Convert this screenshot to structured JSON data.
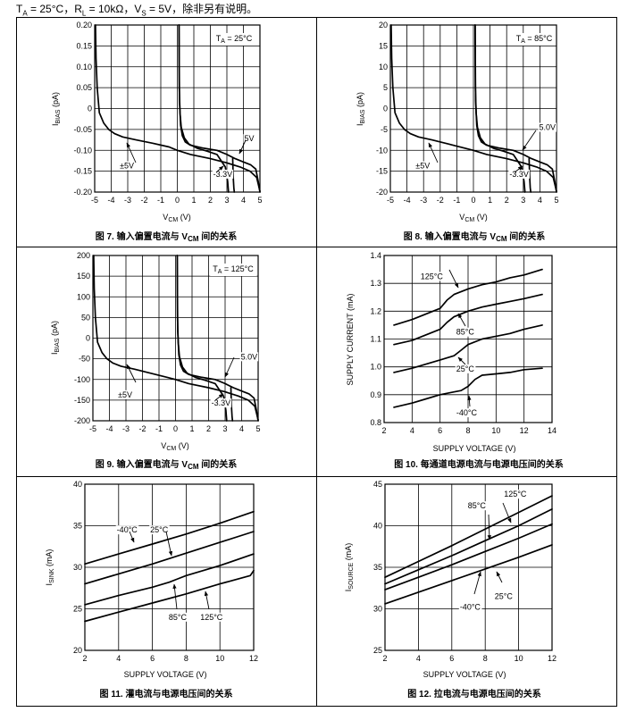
{
  "header": {
    "ta": "25°C",
    "rl": "10kΩ",
    "vs": "5V",
    "note": "除非另有说明。"
  },
  "chart_data": [
    {
      "id": "fig7",
      "type": "line",
      "caption_prefix": "图 7.",
      "caption_text": "输入偏置电流与 V",
      "caption_sub": "CM",
      "caption_suffix": " 间的关系",
      "xlabel": "V",
      "xlabel_sub": "CM",
      "xlabel_unit": " (V)",
      "ylabel": "I",
      "ylabel_sub": "BIAS",
      "ylabel_unit": " (pA)",
      "xlim": [
        -5,
        5
      ],
      "ylim": [
        -0.2,
        0.2
      ],
      "xticks": [
        -5,
        -4,
        -3,
        -2,
        -1,
        0,
        1,
        2,
        3,
        4,
        5
      ],
      "xticklabels": [
        "-5",
        "-4",
        "-3",
        "-2",
        "-1",
        "0",
        "1",
        "2",
        "3",
        "4",
        "5"
      ],
      "yticks": [
        0.2,
        0.15,
        0.1,
        0.05,
        0,
        -0.05,
        -0.1,
        -0.15,
        -0.2
      ],
      "yticklabels": [
        "0.20",
        "0.15",
        "0.10",
        "0.05",
        "0",
        "-0.05",
        "-0.10",
        "-0.15",
        "-0.20"
      ],
      "legend_title": "T",
      "legend_title_sub": "A",
      "legend_title_value": " = 25°C",
      "series": [
        {
          "name": "±5V",
          "x": [
            -4.95,
            -4.92,
            -4.85,
            -4.72,
            -4.45,
            -4.15,
            -3.8,
            -3.3,
            -2.5,
            -1.5,
            -0.5,
            0,
            0.8,
            2,
            3,
            3.8,
            4.4,
            4.8,
            5
          ],
          "y": [
            0.2,
            0.12,
            0.05,
            -0.01,
            -0.035,
            -0.05,
            -0.06,
            -0.068,
            -0.075,
            -0.083,
            -0.092,
            -0.1,
            -0.11,
            -0.12,
            -0.13,
            -0.14,
            -0.15,
            -0.165,
            -0.198
          ]
        },
        {
          "name": "-3.3V",
          "x": [
            0.1,
            0.12,
            0.16,
            0.24,
            0.42,
            0.7,
            1.2,
            1.8,
            2.4,
            2.9,
            3.05,
            3.1
          ],
          "y": [
            0.2,
            0.05,
            -0.01,
            -0.045,
            -0.07,
            -0.085,
            -0.095,
            -0.102,
            -0.11,
            -0.14,
            -0.175,
            -0.2
          ]
        },
        {
          "name": "5V",
          "x": [
            0.1,
            0.13,
            0.2,
            0.3,
            0.48,
            0.8,
            1.6,
            2.4,
            3,
            3.5,
            4,
            4.45,
            4.75,
            4.9,
            5
          ],
          "y": [
            0.2,
            0.02,
            -0.04,
            -0.065,
            -0.08,
            -0.088,
            -0.095,
            -0.1,
            -0.11,
            -0.12,
            -0.128,
            -0.135,
            -0.145,
            -0.175,
            -0.2
          ]
        },
        {
          "name": "",
          "x": [
            3.35,
            3.38,
            3.42,
            3.45
          ],
          "y": [
            -0.12,
            -0.16,
            -0.19,
            -0.2
          ]
        }
      ],
      "annotations": [
        {
          "text": "5V",
          "x": 4.35,
          "y": -0.072
        },
        {
          "text": "±5V",
          "x": -3.05,
          "y": -0.137
        },
        {
          "text": "-3.3V",
          "x": 2.75,
          "y": -0.157
        }
      ]
    },
    {
      "id": "fig8",
      "type": "line",
      "caption_prefix": "图 8.",
      "caption_text": "输入偏置电流与 V",
      "caption_sub": "CM",
      "caption_suffix": " 间的关系",
      "xlabel": "V",
      "xlabel_sub": "CM",
      "xlabel_unit": " (V)",
      "ylabel": "I",
      "ylabel_sub": "BIAS",
      "ylabel_unit": " (pA)",
      "xlim": [
        -5,
        5
      ],
      "ylim": [
        -20,
        20
      ],
      "xticks": [
        -5,
        -4,
        -3,
        -2,
        -1,
        0,
        1,
        2,
        3,
        4,
        5
      ],
      "xticklabels": [
        "-5",
        "-4",
        "-3",
        "-2",
        "-1",
        "0",
        "1",
        "2",
        "3",
        "4",
        "5"
      ],
      "yticks": [
        20,
        15,
        10,
        5,
        0,
        -5,
        -10,
        -15,
        -20
      ],
      "yticklabels": [
        "20",
        "15",
        "10",
        "5",
        "0",
        "-5",
        "-10",
        "-15",
        "-20"
      ],
      "legend_title": "T",
      "legend_title_sub": "A",
      "legend_title_value": " = 85°C",
      "series": [
        {
          "name": "±5V",
          "x": [
            -4.95,
            -4.92,
            -4.85,
            -4.72,
            -4.45,
            -4.15,
            -3.8,
            -3.3,
            -2.5,
            -1.5,
            -0.5,
            0,
            0.8,
            2,
            3,
            3.8,
            4.4,
            4.8,
            5
          ],
          "y": [
            20,
            12,
            5,
            -1,
            -3.5,
            -5,
            -6,
            -6.8,
            -7.5,
            -8.5,
            -9.5,
            -10,
            -11,
            -12,
            -13,
            -14,
            -15,
            -16.5,
            -19.8
          ]
        },
        {
          "name": "-3.3V",
          "x": [
            0.1,
            0.12,
            0.16,
            0.24,
            0.42,
            0.7,
            1.2,
            1.8,
            2.4,
            2.9,
            3.05,
            3.1
          ],
          "y": [
            20,
            5,
            -1,
            -4.5,
            -7,
            -8.5,
            -9.5,
            -10.2,
            -11,
            -14,
            -17.5,
            -20
          ]
        },
        {
          "name": "5.0V",
          "x": [
            0.1,
            0.13,
            0.2,
            0.3,
            0.48,
            0.8,
            1.6,
            2.4,
            3,
            3.5,
            4,
            4.45,
            4.75,
            4.9,
            5
          ],
          "y": [
            20,
            2,
            -4,
            -6.5,
            -8,
            -8.8,
            -9.5,
            -10,
            -11,
            -12,
            -12.8,
            -13.5,
            -14.5,
            -17.5,
            -20
          ]
        },
        {
          "name": "",
          "x": [
            3.35,
            3.38,
            3.42,
            3.45
          ],
          "y": [
            -12,
            -16,
            -19,
            -20
          ]
        }
      ],
      "annotations": [
        {
          "text": "5.0V",
          "x": 4.45,
          "y": -4.5
        },
        {
          "text": "±5V",
          "x": -3.05,
          "y": -13.7
        },
        {
          "text": "-3.3V",
          "x": 2.75,
          "y": -15.7
        }
      ]
    },
    {
      "id": "fig9",
      "type": "line",
      "caption_prefix": "图 9.",
      "caption_text": "输入偏置电流与 V",
      "caption_sub": "CM",
      "caption_suffix": " 间的关系",
      "xlabel": "V",
      "xlabel_sub": "CM",
      "xlabel_unit": " (V)",
      "ylabel": "I",
      "ylabel_sub": "BIAS",
      "ylabel_unit": " (pA)",
      "xlim": [
        -5,
        5
      ],
      "ylim": [
        -200,
        200
      ],
      "xticks": [
        -5,
        -4,
        -3,
        -2,
        -1,
        0,
        1,
        2,
        3,
        4,
        5
      ],
      "xticklabels": [
        "-5",
        "-4",
        "-3",
        "-2",
        "-1",
        "0",
        "1",
        "2",
        "3",
        "4",
        "5"
      ],
      "yticks": [
        200,
        150,
        100,
        50,
        0,
        -50,
        -100,
        -150,
        -200
      ],
      "yticklabels": [
        "200",
        "150",
        "100",
        "50",
        "0",
        "-50",
        "-100",
        "-150",
        "-200"
      ],
      "legend_title": "T",
      "legend_title_sub": "A",
      "legend_title_value": " = 125°C",
      "series": [
        {
          "name": "±5V",
          "x": [
            -4.95,
            -4.92,
            -4.85,
            -4.72,
            -4.45,
            -4.15,
            -3.8,
            -3.3,
            -2.5,
            -1.5,
            -0.5,
            0,
            0.8,
            2,
            3,
            3.8,
            4.4,
            4.8,
            5
          ],
          "y": [
            200,
            120,
            50,
            -10,
            -35,
            -50,
            -60,
            -68,
            -75,
            -85,
            -95,
            -100,
            -110,
            -120,
            -130,
            -140,
            -150,
            -165,
            -198
          ]
        },
        {
          "name": "-3.3V",
          "x": [
            0.1,
            0.12,
            0.16,
            0.24,
            0.42,
            0.7,
            1.2,
            1.8,
            2.4,
            2.9,
            3.05,
            3.1
          ],
          "y": [
            200,
            50,
            -10,
            -45,
            -70,
            -85,
            -95,
            -102,
            -110,
            -140,
            -175,
            -200
          ]
        },
        {
          "name": "5.0V",
          "x": [
            0.1,
            0.13,
            0.2,
            0.3,
            0.48,
            0.8,
            1.6,
            2.4,
            3,
            3.5,
            4,
            4.45,
            4.75,
            4.9,
            5
          ],
          "y": [
            200,
            20,
            -40,
            -65,
            -80,
            -88,
            -95,
            -100,
            -110,
            -120,
            -128,
            -135,
            -145,
            -175,
            -200
          ]
        },
        {
          "name": "",
          "x": [
            3.35,
            3.38,
            3.42,
            3.45
          ],
          "y": [
            -120,
            -160,
            -190,
            -200
          ]
        }
      ],
      "annotations": [
        {
          "text": "5.0V",
          "x": 4.45,
          "y": -45
        },
        {
          "text": "±5V",
          "x": -3.05,
          "y": -137
        },
        {
          "text": "-3.3V",
          "x": 2.75,
          "y": -157
        }
      ]
    },
    {
      "id": "fig10",
      "type": "line",
      "caption_prefix": "图 10.",
      "caption_text": "每通道电源电流与电源电压间的关系",
      "caption_sub": "",
      "caption_suffix": "",
      "xlabel": "SUPPLY VOLTAGE",
      "xlabel_sub": "",
      "xlabel_unit": " (V)",
      "ylabel": "SUPPLY CURRENT",
      "ylabel_sub": "",
      "ylabel_unit": " (mA)",
      "xlim": [
        2,
        14
      ],
      "ylim": [
        0.8,
        1.4
      ],
      "xticks": [
        2,
        4,
        6,
        8,
        10,
        12,
        14
      ],
      "xticklabels": [
        "2",
        "4",
        "6",
        "8",
        "10",
        "12",
        "14"
      ],
      "yticks": [
        1.4,
        1.3,
        1.2,
        1.1,
        1.0,
        0.9,
        0.8
      ],
      "yticklabels": [
        "1.4",
        "1.3",
        "1.2",
        "1.1",
        "1.0",
        "0.9",
        "0.8"
      ],
      "series": [
        {
          "name": "125°C",
          "x": [
            2.7,
            4,
            5,
            6,
            6.5,
            7,
            8,
            9,
            10,
            11,
            12,
            13.3
          ],
          "y": [
            1.15,
            1.17,
            1.19,
            1.21,
            1.24,
            1.26,
            1.28,
            1.295,
            1.305,
            1.32,
            1.33,
            1.35
          ]
        },
        {
          "name": "85°C",
          "x": [
            2.7,
            4,
            5,
            6,
            6.5,
            7,
            8,
            9,
            10,
            11,
            12,
            13.3
          ],
          "y": [
            1.08,
            1.095,
            1.115,
            1.135,
            1.16,
            1.18,
            1.2,
            1.215,
            1.225,
            1.235,
            1.245,
            1.26
          ]
        },
        {
          "name": "25°C",
          "x": [
            2.7,
            4,
            5,
            6,
            7,
            7.5,
            8,
            9,
            10,
            11,
            12,
            13.3
          ],
          "y": [
            0.98,
            0.995,
            1.01,
            1.025,
            1.04,
            1.06,
            1.08,
            1.1,
            1.11,
            1.12,
            1.135,
            1.15
          ]
        },
        {
          "name": "-40°C",
          "x": [
            2.7,
            4,
            5,
            6,
            7,
            7.5,
            8,
            8.5,
            9,
            10,
            11,
            12,
            13.3
          ],
          "y": [
            0.855,
            0.87,
            0.885,
            0.9,
            0.91,
            0.915,
            0.93,
            0.955,
            0.97,
            0.975,
            0.98,
            0.99,
            0.995
          ]
        }
      ],
      "annotations": [
        {
          "text": "125°C",
          "x": 5.4,
          "y": 1.325
        },
        {
          "text": "85°C",
          "x": 7.8,
          "y": 1.125
        },
        {
          "text": "25°C",
          "x": 7.8,
          "y": 0.993
        },
        {
          "text": "-40°C",
          "x": 7.9,
          "y": 0.835
        }
      ]
    },
    {
      "id": "fig11",
      "type": "line",
      "caption_prefix": "图 11.",
      "caption_text": "灌电流与电源电压间的关系",
      "caption_sub": "",
      "caption_suffix": "",
      "xlabel": "SUPPLY VOLTAGE",
      "xlabel_sub": "",
      "xlabel_unit": " (V)",
      "ylabel": "I",
      "ylabel_sub": "SINK",
      "ylabel_unit": " (mA)",
      "xlim": [
        2,
        12
      ],
      "ylim": [
        20,
        40
      ],
      "xticks": [
        2,
        4,
        6,
        8,
        10,
        12
      ],
      "xticklabels": [
        "2",
        "4",
        "6",
        "8",
        "10",
        "12"
      ],
      "yticks": [
        40,
        35,
        30,
        25,
        20
      ],
      "yticklabels": [
        "40",
        "35",
        "30",
        "25",
        "20"
      ],
      "series": [
        {
          "name": "-40°C",
          "x": [
            2,
            4,
            6,
            8,
            10,
            12
          ],
          "y": [
            30.4,
            31.6,
            32.8,
            34,
            35.3,
            36.7
          ]
        },
        {
          "name": "25°C",
          "x": [
            2,
            4,
            6,
            8,
            10,
            12
          ],
          "y": [
            28,
            29.2,
            30.4,
            31.7,
            33,
            34.3
          ]
        },
        {
          "name": "85°C",
          "x": [
            2,
            4,
            6,
            7,
            7.5,
            8,
            10,
            12
          ],
          "y": [
            25.5,
            26.6,
            27.6,
            28.2,
            28.6,
            29,
            30.2,
            31.6
          ]
        },
        {
          "name": "125°C",
          "x": [
            2,
            4,
            6,
            8,
            10,
            11.8,
            12
          ],
          "y": [
            23.5,
            24.6,
            25.7,
            26.8,
            28,
            29,
            29.6
          ]
        }
      ],
      "annotations": [
        {
          "text": "-40°C",
          "x": 4.5,
          "y": 34.5
        },
        {
          "text": "25°C",
          "x": 6.4,
          "y": 34.5
        },
        {
          "text": "85°C",
          "x": 7.5,
          "y": 24
        },
        {
          "text": "125°C",
          "x": 9.5,
          "y": 24
        }
      ]
    },
    {
      "id": "fig12",
      "type": "line",
      "caption_prefix": "图 12.",
      "caption_text": "拉电流与电源电压间的关系",
      "caption_sub": "",
      "caption_suffix": "",
      "xlabel": "SUPPLY VOLTAGE",
      "xlabel_sub": "",
      "xlabel_unit": " (V)",
      "ylabel": "I",
      "ylabel_sub": "SOURCE",
      "ylabel_unit": " (mA)",
      "xlim": [
        2,
        12
      ],
      "ylim": [
        25,
        45
      ],
      "xticks": [
        2,
        4,
        6,
        8,
        10,
        12
      ],
      "xticklabels": [
        "2",
        "4",
        "6",
        "8",
        "10",
        "12"
      ],
      "yticks": [
        45,
        40,
        35,
        30,
        25
      ],
      "yticklabels": [
        "45",
        "40",
        "35",
        "30",
        "25"
      ],
      "series": [
        {
          "name": "125°C",
          "x": [
            2,
            4,
            6,
            8,
            10,
            12
          ],
          "y": [
            33.8,
            35.7,
            37.6,
            39.6,
            41.6,
            43.6
          ]
        },
        {
          "name": "85°C",
          "x": [
            2,
            4,
            6,
            8,
            10,
            12
          ],
          "y": [
            33,
            34.7,
            36.4,
            38.2,
            40,
            42
          ]
        },
        {
          "name": "25°C",
          "x": [
            2,
            4,
            6,
            8,
            10,
            12
          ],
          "y": [
            32.3,
            33.8,
            35.3,
            36.9,
            38.5,
            40.2
          ]
        },
        {
          "name": "-40°C",
          "x": [
            2,
            4,
            6,
            8,
            10,
            12
          ],
          "y": [
            30.6,
            32,
            33.4,
            34.8,
            36.2,
            37.7
          ]
        }
      ],
      "annotations": [
        {
          "text": "125°C",
          "x": 9.8,
          "y": 43.8
        },
        {
          "text": "85°C",
          "x": 7.5,
          "y": 42.4
        },
        {
          "text": "25°C",
          "x": 9.1,
          "y": 31.5
        },
        {
          "text": "-40°C",
          "x": 7.1,
          "y": 30.2
        }
      ]
    }
  ]
}
